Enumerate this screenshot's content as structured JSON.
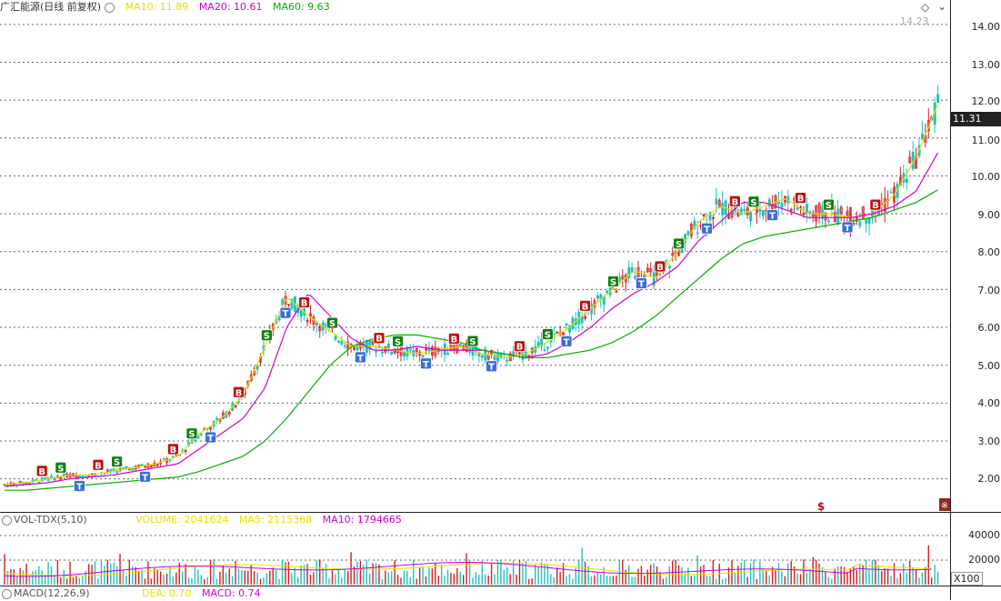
{
  "header": {
    "title": "广汇能源(日线 前复权)",
    "ma_lines": [
      {
        "label": "MA10: 11.89",
        "color": "#e8e000"
      },
      {
        "label": "MA20: 10.61",
        "color": "#d000d0"
      },
      {
        "label": "MA60: 9.63",
        "color": "#00b000"
      }
    ]
  },
  "price_axis": {
    "ticks": [
      "14.00",
      "13.00",
      "12.00",
      "11.00",
      "10.00",
      "9.00",
      "8.00",
      "7.00",
      "6.00",
      "5.00",
      "4.00",
      "3.00",
      "2.00"
    ],
    "current_price": "11.31",
    "high_label": "14.23"
  },
  "volume_panel": {
    "title": "VOL-TDX(5,10)",
    "volume": "VOLUME: 2041624",
    "ma5": "MA5: 2115368",
    "ma10": "MA10: 1794665",
    "ticks": [
      "40000",
      "20000"
    ],
    "scale": "X100"
  },
  "macd_panel": {
    "title": "MACD(12,26,9)",
    "dea": "DEA: 0.70",
    "macd": "MACD: 0.74"
  },
  "markers": {
    "buy": "B",
    "sell": "S",
    "t": "T",
    "dollar": "$",
    "special": "※"
  },
  "colors": {
    "up": "#d02020",
    "down": "#20c0c0",
    "ma10": "#e8e000",
    "ma20": "#d000d0",
    "ma60": "#00b000",
    "buy_bg": "#c01010",
    "sell_bg": "#108010",
    "t_bg": "#3a6fd8"
  },
  "chart_data": {
    "type": "candlestick",
    "y_range": [
      1.2,
      14.5
    ],
    "series": [
      {
        "name": "MA10",
        "values": [
          1.85,
          1.9,
          2.0,
          2.1,
          2.1,
          2.2,
          2.3,
          2.4,
          2.6,
          3.2,
          3.6,
          4.2,
          5.5,
          6.8,
          6.3,
          5.9,
          5.5,
          5.5,
          5.4,
          5.3,
          5.4,
          5.5,
          5.3,
          5.2,
          5.3,
          5.6,
          6.0,
          6.5,
          7.0,
          7.5,
          7.3,
          8.0,
          8.8,
          9.2,
          9.0,
          9.2,
          9.4,
          9.0,
          9.0,
          8.9,
          9.0,
          9.5,
          10.5,
          11.89
        ]
      },
      {
        "name": "MA20",
        "values": [
          1.8,
          1.85,
          1.9,
          2.0,
          2.05,
          2.1,
          2.2,
          2.3,
          2.4,
          2.8,
          3.2,
          3.6,
          4.4,
          6.0,
          6.9,
          6.3,
          5.7,
          5.4,
          5.4,
          5.5,
          5.4,
          5.4,
          5.4,
          5.3,
          5.2,
          5.3,
          5.6,
          6.0,
          6.5,
          6.9,
          7.2,
          7.6,
          8.3,
          8.8,
          9.3,
          9.3,
          9.1,
          8.9,
          8.9,
          8.9,
          9.0,
          9.2,
          9.6,
          10.61
        ]
      },
      {
        "name": "MA60",
        "values": [
          1.7,
          1.7,
          1.75,
          1.8,
          1.85,
          1.9,
          1.95,
          2.0,
          2.05,
          2.2,
          2.4,
          2.6,
          3.0,
          3.6,
          4.3,
          5.0,
          5.5,
          5.7,
          5.8,
          5.8,
          5.7,
          5.6,
          5.4,
          5.3,
          5.2,
          5.2,
          5.3,
          5.4,
          5.6,
          5.9,
          6.3,
          6.8,
          7.3,
          7.8,
          8.2,
          8.4,
          8.5,
          8.6,
          8.7,
          8.8,
          8.9,
          9.1,
          9.3,
          9.63
        ]
      }
    ]
  }
}
